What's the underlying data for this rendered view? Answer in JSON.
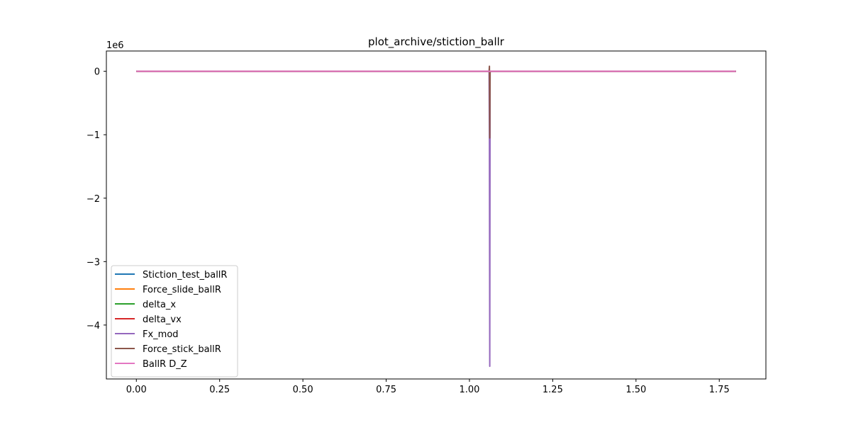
{
  "chart_data": {
    "type": "line",
    "title": "plot_archive/stiction_ballr",
    "xlabel": "",
    "ylabel": "",
    "y_offset_text": "1e6",
    "xlim": [
      -0.09,
      1.89
    ],
    "ylim": [
      -4.85,
      0.32
    ],
    "xticks": [
      0.0,
      0.25,
      0.5,
      0.75,
      1.0,
      1.25,
      1.5,
      1.75
    ],
    "xtick_labels": [
      "0.00",
      "0.25",
      "0.50",
      "0.75",
      "1.00",
      "1.25",
      "1.50",
      "1.75"
    ],
    "yticks": [
      0,
      -1,
      -2,
      -3,
      -4
    ],
    "ytick_labels": [
      "0",
      "−1",
      "−2",
      "−3",
      "−4"
    ],
    "grid": false,
    "legend_position": "lower-left",
    "series": [
      {
        "name": "Stiction_test_ballR",
        "color": "#1f77b4",
        "x": [
          0.0,
          1.8
        ],
        "y": [
          0.0,
          0.0
        ]
      },
      {
        "name": "Force_slide_ballR",
        "color": "#ff7f0e",
        "x": [
          0.0,
          1.8
        ],
        "y": [
          0.0,
          0.0
        ]
      },
      {
        "name": "delta_x",
        "color": "#2ca02c",
        "x": [
          0.0,
          1.8
        ],
        "y": [
          0.0,
          0.0
        ]
      },
      {
        "name": "delta_vx",
        "color": "#d62728",
        "x": [
          0.0,
          1.8
        ],
        "y": [
          0.0,
          0.0
        ]
      },
      {
        "name": "Fx_mod",
        "color": "#9467bd",
        "x": [
          0.0,
          1.059,
          1.06,
          1.061,
          1.062,
          1.8
        ],
        "y": [
          0.0,
          0.0,
          -1.05,
          -4.65,
          0.0,
          0.0
        ]
      },
      {
        "name": "Force_stick_ballR",
        "color": "#8c564b",
        "x": [
          0.0,
          1.059,
          1.06,
          1.061,
          1.062,
          1.8
        ],
        "y": [
          0.0,
          0.0,
          0.08,
          -1.05,
          0.0,
          0.0
        ]
      },
      {
        "name": "BallR D_Z",
        "color": "#e377c2",
        "x": [
          0.0,
          1.8
        ],
        "y": [
          0.0,
          0.0
        ]
      }
    ]
  }
}
